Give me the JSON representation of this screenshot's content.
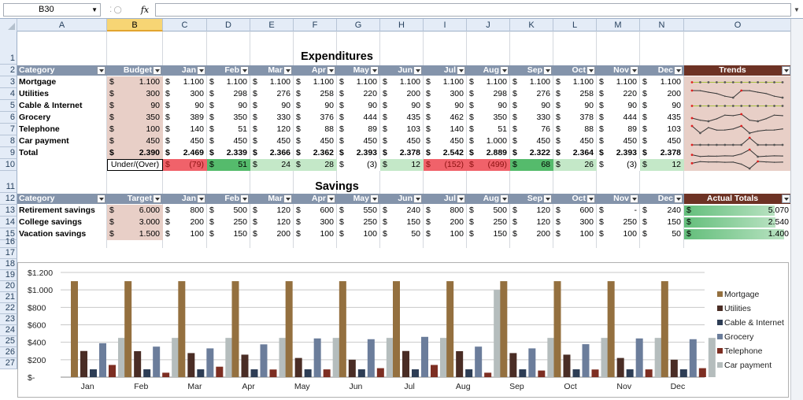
{
  "formula_bar": {
    "name_box": "B30",
    "fx_label": "fx",
    "formula": ""
  },
  "columns": [
    "A",
    "B",
    "C",
    "D",
    "E",
    "F",
    "G",
    "H",
    "I",
    "J",
    "K",
    "L",
    "M",
    "N",
    "O"
  ],
  "selected_column": "B",
  "rows": [
    "1",
    "2",
    "3",
    "4",
    "5",
    "6",
    "7",
    "8",
    "9",
    "10",
    "11",
    "12",
    "13",
    "14",
    "15",
    "16",
    "17",
    "18",
    "19",
    "20",
    "21",
    "22",
    "23",
    "24",
    "25",
    "26",
    "27"
  ],
  "currency_symbol": "$",
  "expenditures": {
    "title": "Expenditures",
    "headers": [
      "Category",
      "Budget",
      "Jan",
      "Feb",
      "Mar",
      "Apr",
      "May",
      "Jun",
      "Jul",
      "Aug",
      "Sep",
      "Oct",
      "Nov",
      "Dec",
      "Trends"
    ],
    "rows": [
      {
        "category": "Mortgage",
        "budget": "1.100",
        "values": [
          "1.100",
          "1.100",
          "1.100",
          "1.100",
          "1.100",
          "1.100",
          "1.100",
          "1.100",
          "1.100",
          "1.100",
          "1.100",
          "1.100"
        ]
      },
      {
        "category": "Utilities",
        "budget": "300",
        "values": [
          "300",
          "298",
          "276",
          "258",
          "220",
          "200",
          "300",
          "298",
          "276",
          "258",
          "220",
          "200"
        ]
      },
      {
        "category": "Cable & Internet",
        "budget": "90",
        "values": [
          "90",
          "90",
          "90",
          "90",
          "90",
          "90",
          "90",
          "90",
          "90",
          "90",
          "90",
          "90"
        ]
      },
      {
        "category": "Grocery",
        "budget": "350",
        "values": [
          "389",
          "350",
          "330",
          "376",
          "444",
          "435",
          "462",
          "350",
          "330",
          "378",
          "444",
          "435"
        ]
      },
      {
        "category": "Telephone",
        "budget": "100",
        "values": [
          "140",
          "51",
          "120",
          "88",
          "89",
          "103",
          "140",
          "51",
          "76",
          "88",
          "89",
          "103"
        ]
      },
      {
        "category": "Car payment",
        "budget": "450",
        "values": [
          "450",
          "450",
          "450",
          "450",
          "450",
          "450",
          "450",
          "1.000",
          "450",
          "450",
          "450",
          "450"
        ]
      }
    ],
    "total": {
      "label": "Total",
      "budget": "2.390",
      "values": [
        "2.469",
        "2.339",
        "2.366",
        "2.362",
        "2.393",
        "2.378",
        "2.542",
        "2.889",
        "2.322",
        "2.364",
        "2.393",
        "2.378"
      ]
    },
    "under_over": {
      "label": "Under/(Over)",
      "values": [
        "(79)",
        "51",
        "24",
        "28",
        "(3)",
        "12",
        "(152)",
        "(499)",
        "68",
        "26",
        "(3)",
        "12"
      ],
      "styles": [
        "red",
        "green",
        "lgreen",
        "lgreen",
        "white",
        "lgreen",
        "red",
        "red",
        "green",
        "lgreen",
        "white",
        "lgreen"
      ]
    }
  },
  "savings": {
    "title": "Savings",
    "headers": [
      "Category",
      "Target",
      "Jan",
      "Feb",
      "Mar",
      "Apr",
      "May",
      "Jun",
      "Jul",
      "Aug",
      "Sep",
      "Oct",
      "Nov",
      "Dec",
      "Actual Totals"
    ],
    "rows": [
      {
        "category": "Retirement savings",
        "target": "6.000",
        "values": [
          "800",
          "500",
          "120",
          "600",
          "550",
          "240",
          "800",
          "500",
          "120",
          "600",
          "-",
          "240"
        ],
        "actual": "5.070",
        "fill": 0.84
      },
      {
        "category": "College savings",
        "target": "3.000",
        "values": [
          "200",
          "250",
          "120",
          "300",
          "250",
          "150",
          "200",
          "250",
          "120",
          "300",
          "250",
          "150"
        ],
        "actual": "2.540",
        "fill": 0.85
      },
      {
        "category": "Vacation savings",
        "target": "1.500",
        "values": [
          "100",
          "150",
          "200",
          "100",
          "100",
          "50",
          "100",
          "150",
          "200",
          "100",
          "100",
          "50"
        ],
        "actual": "1.400",
        "fill": 0.93
      }
    ]
  },
  "chart_data": {
    "type": "bar",
    "title": "",
    "categories": [
      "Jan",
      "Feb",
      "Mar",
      "Apr",
      "May",
      "Jun",
      "Jul",
      "Aug",
      "Sep",
      "Oct",
      "Nov",
      "Dec"
    ],
    "ylim": [
      0,
      1200
    ],
    "yticks": [
      0,
      200,
      400,
      600,
      800,
      1000,
      1200
    ],
    "ytick_labels": [
      "$-",
      "$200",
      "$400",
      "$600",
      "$800",
      "$1.000",
      "$1.200"
    ],
    "series": [
      {
        "name": "Mortgage",
        "color": "#94703f",
        "values": [
          1100,
          1100,
          1100,
          1100,
          1100,
          1100,
          1100,
          1100,
          1100,
          1100,
          1100,
          1100
        ]
      },
      {
        "name": "Utilities",
        "color": "#4a2d25",
        "values": [
          300,
          298,
          276,
          258,
          220,
          200,
          300,
          298,
          276,
          258,
          220,
          200
        ]
      },
      {
        "name": "Cable & Internet",
        "color": "#2d3d55",
        "values": [
          90,
          90,
          90,
          90,
          90,
          90,
          90,
          90,
          90,
          90,
          90,
          90
        ]
      },
      {
        "name": "Grocery",
        "color": "#6b7d9b",
        "values": [
          389,
          350,
          330,
          376,
          444,
          435,
          462,
          350,
          330,
          378,
          444,
          435
        ]
      },
      {
        "name": "Telephone",
        "color": "#7d2e22",
        "values": [
          140,
          51,
          120,
          88,
          89,
          103,
          140,
          51,
          76,
          88,
          89,
          103
        ]
      },
      {
        "name": "Car payment",
        "color": "#b5bdbd",
        "values": [
          450,
          450,
          450,
          450,
          450,
          450,
          450,
          1000,
          450,
          450,
          450,
          450
        ]
      }
    ],
    "grid": true,
    "legend": "right"
  }
}
